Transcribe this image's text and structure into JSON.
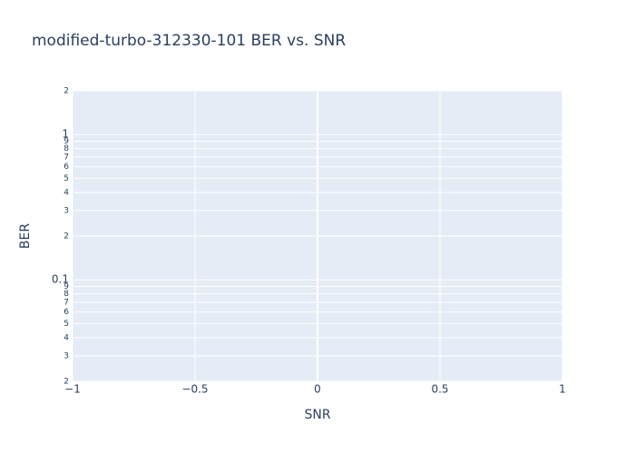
{
  "chart_data": {
    "type": "scatter",
    "title": "modified-turbo-312330-101 BER vs. SNR",
    "x_label": "SNR",
    "y_label": "BER",
    "xlim": [
      -1,
      1
    ],
    "xticks": [
      {
        "value": -1,
        "label": "−1"
      },
      {
        "value": -0.5,
        "label": "−0.5"
      },
      0,
      0.5,
      1
    ],
    "ylim": [
      0.02,
      2
    ],
    "yscale": "log",
    "yticks": [
      {
        "value": 0.02,
        "label": "2"
      },
      {
        "value": 0.03,
        "label": "3"
      },
      {
        "value": 0.04,
        "label": "4"
      },
      {
        "value": 0.05,
        "label": "5"
      },
      {
        "value": 0.06,
        "label": "6"
      },
      {
        "value": 0.07,
        "label": "7"
      },
      {
        "value": 0.08,
        "label": "8"
      },
      {
        "value": 0.09,
        "label": "9"
      },
      0.1,
      {
        "value": 0.2,
        "label": "2"
      },
      {
        "value": 0.3,
        "label": "3"
      },
      {
        "value": 0.4,
        "label": "4"
      },
      {
        "value": 0.5,
        "label": "5"
      },
      {
        "value": 0.6,
        "label": "6"
      },
      {
        "value": 0.7,
        "label": "7"
      },
      {
        "value": 0.8,
        "label": "8"
      },
      {
        "value": 0.9,
        "label": "9"
      },
      1,
      2
    ],
    "grid": true
  }
}
